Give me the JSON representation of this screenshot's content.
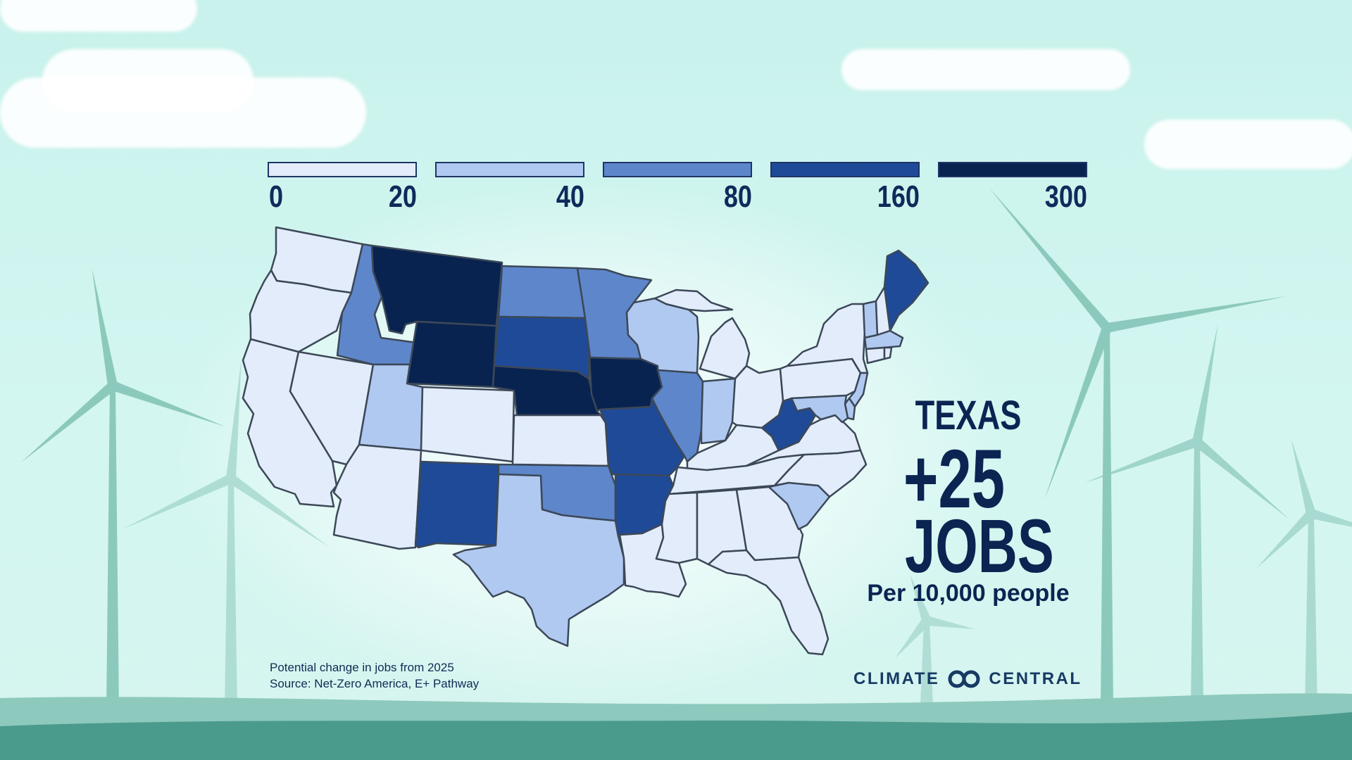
{
  "legend": {
    "bins": [
      {
        "min": "0",
        "max": "20",
        "color": "#e3ecfb"
      },
      {
        "min": "20",
        "max": "40",
        "color": "#b0c9f1"
      },
      {
        "min": "40",
        "max": "80",
        "color": "#5e86cb"
      },
      {
        "min": "80",
        "max": "160",
        "color": "#1e4a98"
      },
      {
        "min": "160",
        "max": "300",
        "color": "#08234f"
      }
    ],
    "tick_labels": [
      "0",
      "20",
      "40",
      "80",
      "160",
      "300"
    ]
  },
  "map": {
    "title": "",
    "highlight": {
      "state": "TEXAS",
      "value": "+25",
      "unit": "JOBS",
      "per": "Per 10,000 people"
    },
    "state_bins": {
      "Washington": 0,
      "Oregon": 0,
      "California": 0,
      "Nevada": 0,
      "Idaho": 2,
      "Montana": 4,
      "Wyoming": 4,
      "Utah": 1,
      "Arizona": 0,
      "Colorado": 0,
      "New Mexico": 3,
      "North Dakota": 2,
      "South Dakota": 3,
      "Nebraska": 4,
      "Kansas": 0,
      "Oklahoma": 2,
      "Texas": 1,
      "Minnesota": 2,
      "Iowa": 4,
      "Missouri": 3,
      "Arkansas": 3,
      "Louisiana": 0,
      "Wisconsin": 1,
      "Illinois": 2,
      "Michigan": 0,
      "Indiana": 1,
      "Ohio": 0,
      "Kentucky": 0,
      "Tennessee": 0,
      "Mississippi": 0,
      "Alabama": 0,
      "Georgia": 0,
      "Florida": 0,
      "South Carolina": 1,
      "North Carolina": 0,
      "Virginia": 0,
      "West Virginia": 3,
      "Pennsylvania": 0,
      "New York": 0,
      "New Jersey": 1,
      "Delaware": 1,
      "Maryland": 1,
      "Vermont": 1,
      "New Hampshire": 0,
      "Maine": 3,
      "Massachusetts": 1,
      "Connecticut": 0,
      "Rhode Island": 0
    }
  },
  "footer": {
    "note": "Potential change in jobs from 2025",
    "source": "Source: Net-Zero America, E+ Pathway",
    "logo_left": "CLIMATE",
    "logo_right": "CENTRAL"
  },
  "colors": {
    "border": "#3c4858",
    "text": "#0b2452",
    "turbine": "#8cc9bd",
    "hill_light": "#8ec9bd",
    "hill_dark": "#4a9b8c"
  }
}
